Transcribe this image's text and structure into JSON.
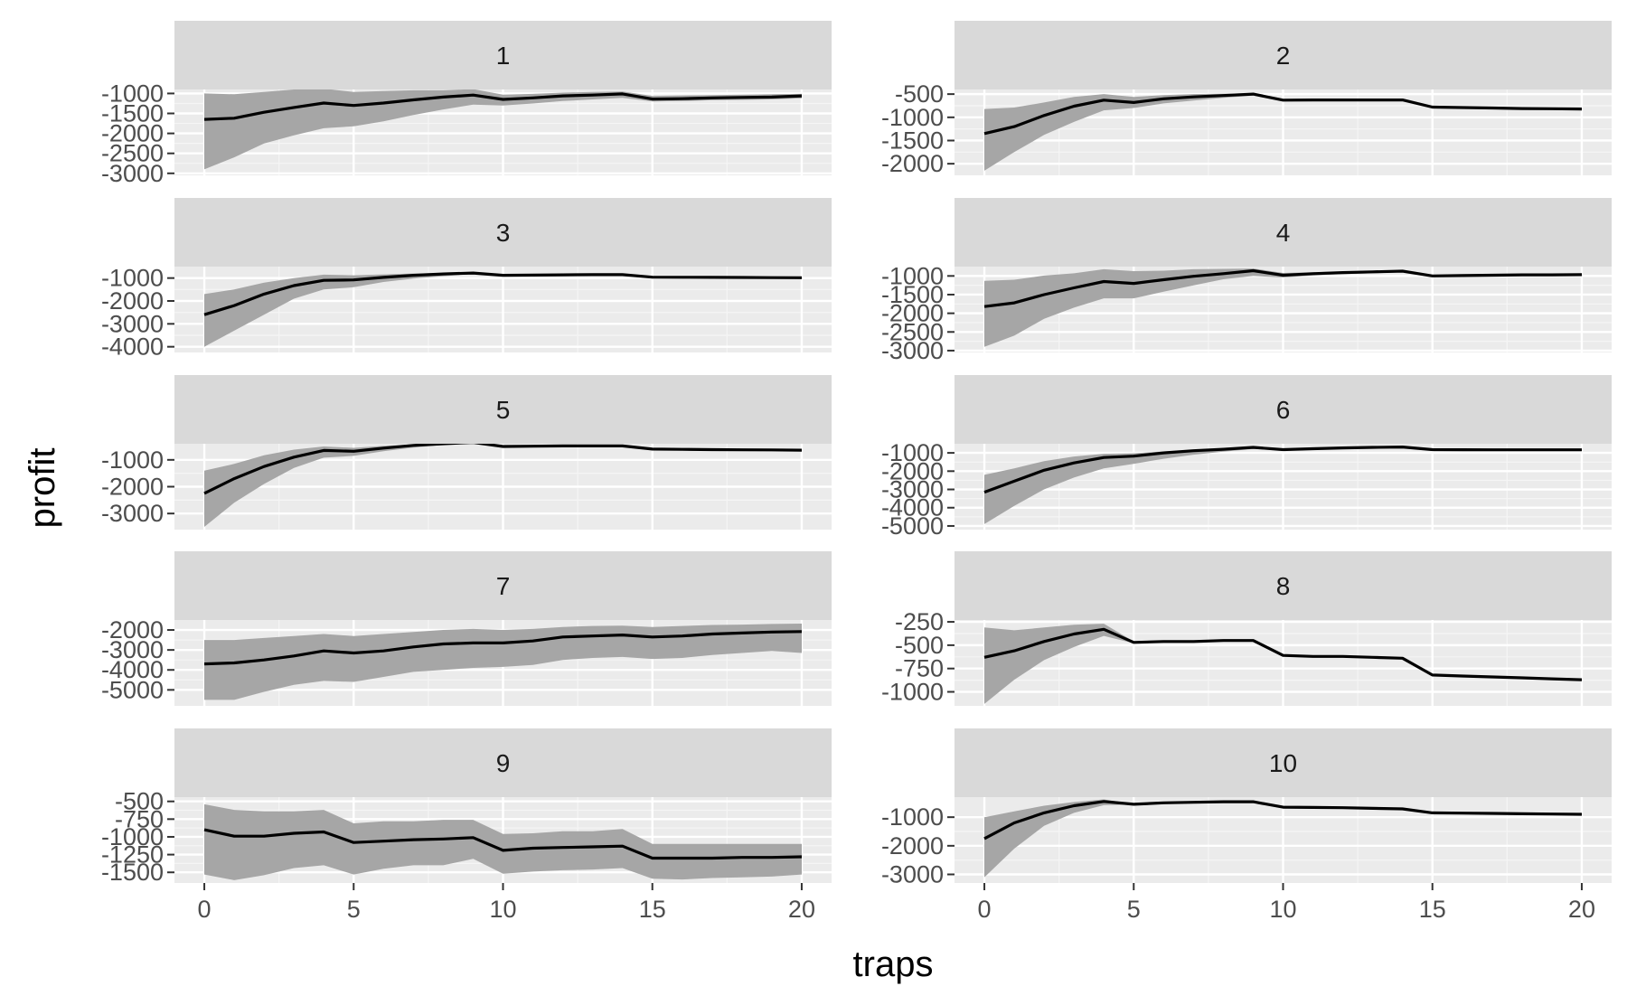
{
  "colors": {
    "panel_background": "#ebebeb",
    "strip_background": "#d9d9d9",
    "grid_major": "#ffffff",
    "grid_minor": "#f5f5f5",
    "ribbon_fill": "#a6a6a6",
    "line": "#000000",
    "tick_text": "#4d4d4d",
    "strip_text": "#1a1a1a"
  },
  "chart_data": {
    "type": "line",
    "layout": "facet_wrap, 5 rows x 2 columns",
    "xlabel": "traps",
    "ylabel": "profit",
    "x": [
      0,
      1,
      2,
      3,
      4,
      5,
      6,
      7,
      8,
      9,
      10,
      11,
      12,
      13,
      14,
      15,
      16,
      17,
      18,
      19,
      20
    ],
    "xlim": [
      -1,
      21
    ],
    "x_ticks": [
      0,
      5,
      10,
      15,
      20
    ],
    "x_tick_labels": [
      "0",
      "5",
      "10",
      "15",
      "20"
    ],
    "grid": true,
    "legend": "none",
    "panels": [
      {
        "label": "1",
        "ylim": [
          -3050,
          -900
        ],
        "y_ticks": [
          -1000,
          -1500,
          -2000,
          -2500,
          -3000
        ],
        "y_tick_labels": [
          "-1000",
          "-1500",
          "-2000",
          "-2500",
          "-3000"
        ],
        "mean": [
          -1650,
          -1620,
          -1470,
          -1350,
          -1240,
          -1300,
          -1240,
          -1160,
          -1090,
          -1040,
          -1150,
          -1110,
          -1060,
          -1040,
          -1010,
          -1140,
          -1130,
          -1110,
          -1100,
          -1090,
          -1060
        ],
        "upper": [
          -1000,
          -1020,
          -960,
          -900,
          -880,
          -960,
          -940,
          -920,
          -920,
          -890,
          -1030,
          -1010,
          -980,
          -960,
          -950,
          -1060,
          -1050,
          -1040,
          -1030,
          -1020,
          -1010
        ],
        "lower": [
          -2900,
          -2600,
          -2250,
          -2050,
          -1870,
          -1820,
          -1700,
          -1540,
          -1400,
          -1280,
          -1300,
          -1250,
          -1190,
          -1150,
          -1110,
          -1200,
          -1190,
          -1170,
          -1160,
          -1150,
          -1120
        ]
      },
      {
        "label": "2",
        "ylim": [
          -2250,
          -400
        ],
        "y_ticks": [
          -500,
          -1000,
          -1500,
          -2000
        ],
        "y_tick_labels": [
          "-500",
          "-1000",
          "-1500",
          "-2000"
        ],
        "mean": [
          -1350,
          -1200,
          -960,
          -760,
          -630,
          -680,
          -600,
          -560,
          -530,
          -500,
          -630,
          -625,
          -625,
          -625,
          -625,
          -780,
          -790,
          -800,
          -810,
          -815,
          -820
        ],
        "upper": [
          -820,
          -790,
          -680,
          -560,
          -500,
          -560,
          -520,
          -500,
          -490,
          -480,
          -620,
          -620,
          -620,
          -620,
          -620,
          -770,
          -780,
          -790,
          -800,
          -810,
          -815
        ],
        "lower": [
          -2150,
          -1750,
          -1380,
          -1100,
          -850,
          -800,
          -700,
          -640,
          -580,
          -530,
          -640,
          -630,
          -630,
          -630,
          -630,
          -790,
          -800,
          -810,
          -820,
          -825,
          -830
        ]
      },
      {
        "label": "3",
        "ylim": [
          -4250,
          -500
        ],
        "y_ticks": [
          -1000,
          -2000,
          -3000,
          -4000
        ],
        "y_tick_labels": [
          "-1000",
          "-2000",
          "-3000",
          "-4000"
        ],
        "mean": [
          -2600,
          -2200,
          -1700,
          -1330,
          -1100,
          -1080,
          -970,
          -880,
          -820,
          -780,
          -880,
          -870,
          -860,
          -850,
          -850,
          -960,
          -965,
          -970,
          -975,
          -980,
          -985
        ],
        "upper": [
          -1700,
          -1500,
          -1200,
          -1000,
          -850,
          -880,
          -840,
          -800,
          -780,
          -760,
          -860,
          -860,
          -850,
          -840,
          -840,
          -950,
          -955,
          -960,
          -965,
          -970,
          -975
        ],
        "lower": [
          -4000,
          -3300,
          -2600,
          -1900,
          -1500,
          -1400,
          -1170,
          -1020,
          -920,
          -820,
          -900,
          -880,
          -870,
          -860,
          -860,
          -970,
          -975,
          -980,
          -985,
          -990,
          -995
        ]
      },
      {
        "label": "4",
        "ylim": [
          -3050,
          -750
        ],
        "y_ticks": [
          -1000,
          -1500,
          -2000,
          -2500,
          -3000
        ],
        "y_tick_labels": [
          "-1000",
          "-1500",
          "-2000",
          "-2500",
          "-3000"
        ],
        "mean": [
          -1820,
          -1720,
          -1500,
          -1320,
          -1150,
          -1200,
          -1100,
          -1010,
          -940,
          -860,
          -980,
          -940,
          -910,
          -890,
          -870,
          -1000,
          -990,
          -980,
          -970,
          -970,
          -965
        ],
        "upper": [
          -1130,
          -1100,
          -990,
          -930,
          -820,
          -870,
          -860,
          -820,
          -810,
          -800,
          -920,
          -900,
          -880,
          -860,
          -850,
          -990,
          -980,
          -970,
          -960,
          -960,
          -955
        ],
        "lower": [
          -2900,
          -2600,
          -2150,
          -1850,
          -1600,
          -1600,
          -1420,
          -1250,
          -1090,
          -1000,
          -1040,
          -990,
          -950,
          -930,
          -900,
          -1010,
          -1000,
          -990,
          -980,
          -980,
          -975
        ]
      },
      {
        "label": "5",
        "ylim": [
          -3600,
          -400
        ],
        "y_ticks": [
          -1000,
          -2000,
          -3000
        ],
        "y_tick_labels": [
          "-1000",
          "-2000",
          "-3000"
        ],
        "mean": [
          -2250,
          -1700,
          -1250,
          -900,
          -650,
          -680,
          -560,
          -460,
          -400,
          -350,
          -500,
          -490,
          -480,
          -480,
          -480,
          -600,
          -610,
          -620,
          -625,
          -630,
          -640
        ],
        "upper": [
          -1400,
          -1150,
          -830,
          -620,
          -500,
          -550,
          -480,
          -420,
          -380,
          -340,
          -480,
          -475,
          -470,
          -470,
          -470,
          -590,
          -600,
          -610,
          -615,
          -620,
          -630
        ],
        "lower": [
          -3500,
          -2600,
          -1900,
          -1300,
          -920,
          -850,
          -680,
          -540,
          -440,
          -380,
          -520,
          -505,
          -495,
          -495,
          -495,
          -610,
          -620,
          -630,
          -635,
          -640,
          -650
        ]
      },
      {
        "label": "6",
        "ylim": [
          -5200,
          -500
        ],
        "y_ticks": [
          -1000,
          -2000,
          -3000,
          -4000,
          -5000
        ],
        "y_tick_labels": [
          "-1000",
          "-2000",
          "-3000",
          "-4000",
          "-5000"
        ],
        "mean": [
          -3150,
          -2550,
          -1950,
          -1550,
          -1250,
          -1180,
          -1000,
          -880,
          -800,
          -700,
          -820,
          -770,
          -730,
          -700,
          -680,
          -820,
          -825,
          -830,
          -830,
          -830,
          -830
        ],
        "upper": [
          -2200,
          -1850,
          -1450,
          -1200,
          -1050,
          -1020,
          -920,
          -840,
          -780,
          -690,
          -800,
          -760,
          -720,
          -690,
          -670,
          -810,
          -815,
          -820,
          -820,
          -820,
          -820
        ],
        "lower": [
          -4900,
          -3900,
          -3000,
          -2350,
          -1850,
          -1600,
          -1320,
          -1100,
          -930,
          -780,
          -850,
          -790,
          -750,
          -720,
          -700,
          -830,
          -835,
          -840,
          -840,
          -840,
          -840
        ]
      },
      {
        "label": "7",
        "ylim": [
          -5800,
          -1500
        ],
        "y_ticks": [
          -2000,
          -3000,
          -4000,
          -5000
        ],
        "y_tick_labels": [
          "-2000",
          "-3000",
          "-4000",
          "-5000"
        ],
        "mean": [
          -3700,
          -3650,
          -3500,
          -3300,
          -3050,
          -3150,
          -3050,
          -2850,
          -2700,
          -2650,
          -2650,
          -2550,
          -2350,
          -2300,
          -2250,
          -2350,
          -2300,
          -2200,
          -2150,
          -2100,
          -2080
        ],
        "upper": [
          -2500,
          -2500,
          -2400,
          -2300,
          -2200,
          -2300,
          -2200,
          -2100,
          -2000,
          -1950,
          -2000,
          -1950,
          -1850,
          -1800,
          -1780,
          -1850,
          -1800,
          -1750,
          -1730,
          -1700,
          -1680
        ],
        "lower": [
          -5500,
          -5500,
          -5100,
          -4750,
          -4550,
          -4600,
          -4350,
          -4100,
          -4000,
          -3900,
          -3850,
          -3750,
          -3500,
          -3400,
          -3350,
          -3450,
          -3400,
          -3250,
          -3150,
          -3050,
          -3150
        ]
      },
      {
        "label": "8",
        "ylim": [
          -1150,
          -230
        ],
        "y_ticks": [
          -250,
          -500,
          -750,
          -1000
        ],
        "y_tick_labels": [
          "-250",
          "-500",
          "-750",
          "-1000"
        ],
        "mean": [
          -630,
          -560,
          -460,
          -380,
          -330,
          -470,
          -460,
          -460,
          -450,
          -450,
          -610,
          -620,
          -620,
          -630,
          -640,
          -820,
          -830,
          -840,
          -850,
          -860,
          -870
        ],
        "upper": [
          -310,
          -340,
          -310,
          -280,
          -270,
          -460,
          -455,
          -455,
          -445,
          -445,
          -600,
          -610,
          -615,
          -625,
          -635,
          -815,
          -825,
          -835,
          -845,
          -855,
          -865
        ],
        "lower": [
          -1130,
          -870,
          -660,
          -520,
          -400,
          -480,
          -465,
          -465,
          -455,
          -455,
          -620,
          -630,
          -630,
          -640,
          -650,
          -825,
          -835,
          -845,
          -855,
          -865,
          -875
        ]
      },
      {
        "label": "9",
        "ylim": [
          -1650,
          -440
        ],
        "y_ticks": [
          -500,
          -750,
          -1000,
          -1250,
          -1500
        ],
        "y_tick_labels": [
          "-500",
          "-750",
          "-1000",
          "-1250",
          "-1500"
        ],
        "mean": [
          -900,
          -990,
          -990,
          -950,
          -930,
          -1080,
          -1060,
          -1040,
          -1030,
          -1010,
          -1190,
          -1160,
          -1150,
          -1140,
          -1130,
          -1300,
          -1300,
          -1300,
          -1290,
          -1290,
          -1280
        ],
        "upper": [
          -540,
          -620,
          -640,
          -640,
          -620,
          -810,
          -780,
          -780,
          -760,
          -760,
          -960,
          -950,
          -920,
          -920,
          -890,
          -1100,
          -1100,
          -1100,
          -1100,
          -1100,
          -1100
        ],
        "lower": [
          -1530,
          -1610,
          -1540,
          -1440,
          -1400,
          -1530,
          -1450,
          -1400,
          -1400,
          -1310,
          -1520,
          -1490,
          -1470,
          -1460,
          -1440,
          -1590,
          -1600,
          -1580,
          -1570,
          -1560,
          -1530
        ]
      },
      {
        "label": "10",
        "ylim": [
          -3300,
          -300
        ],
        "y_ticks": [
          -1000,
          -2000,
          -3000
        ],
        "y_tick_labels": [
          "-1000",
          "-2000",
          "-3000"
        ],
        "mean": [
          -1750,
          -1200,
          -850,
          -600,
          -450,
          -550,
          -500,
          -480,
          -460,
          -460,
          -650,
          -660,
          -670,
          -690,
          -710,
          -850,
          -860,
          -870,
          -880,
          -890,
          -900
        ],
        "upper": [
          -1000,
          -800,
          -600,
          -470,
          -380,
          -540,
          -490,
          -470,
          -450,
          -450,
          -640,
          -650,
          -660,
          -680,
          -700,
          -840,
          -850,
          -860,
          -870,
          -880,
          -890
        ],
        "lower": [
          -3100,
          -2100,
          -1300,
          -850,
          -580,
          -560,
          -510,
          -490,
          -470,
          -470,
          -660,
          -670,
          -680,
          -700,
          -720,
          -860,
          -870,
          -880,
          -890,
          -900,
          -910
        ]
      }
    ]
  }
}
